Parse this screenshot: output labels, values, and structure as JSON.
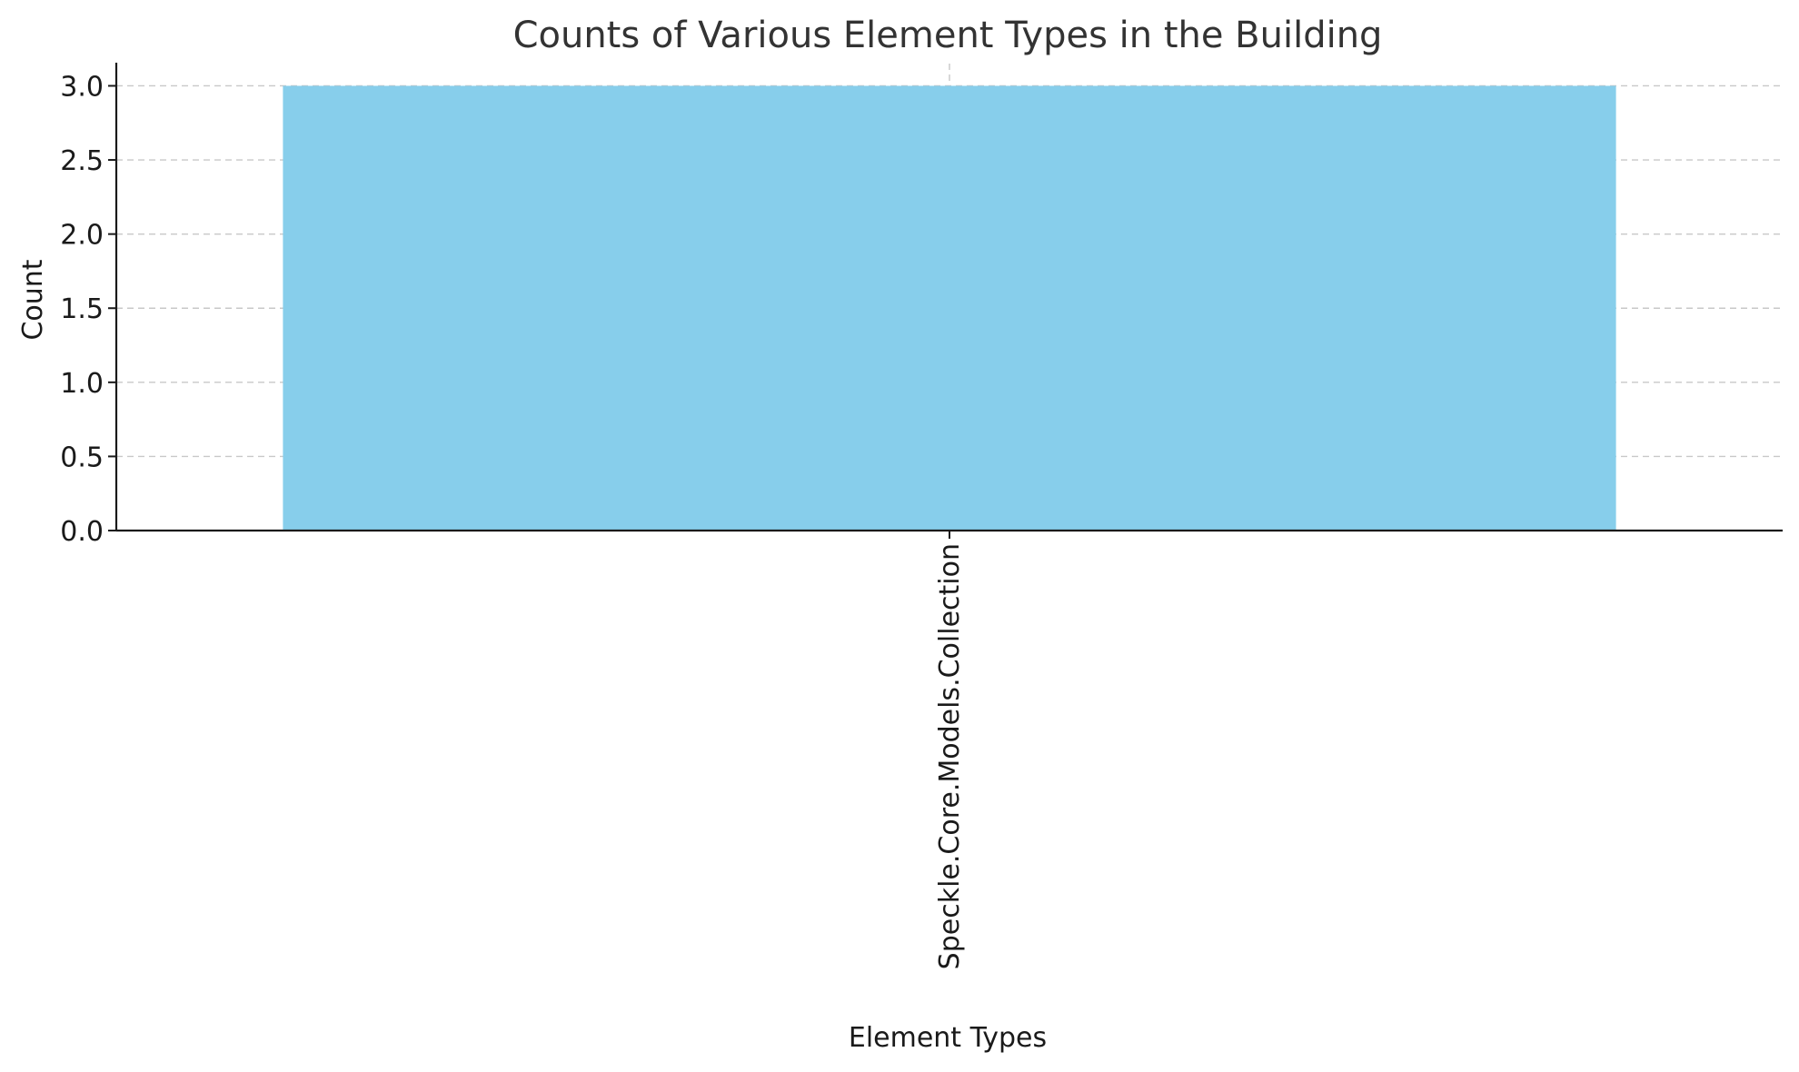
{
  "chart_data": {
    "type": "bar",
    "title": "Counts of Various Element Types in the Building",
    "xlabel": "Element Types",
    "ylabel": "Count",
    "categories": [
      "Speckle.Core.Models.Collection"
    ],
    "values": [
      3
    ],
    "ylim": [
      0,
      3.15
    ],
    "yticks": [
      "0.0",
      "0.5",
      "1.0",
      "1.5",
      "2.0",
      "2.5",
      "3.0"
    ],
    "grid": true,
    "bar_color": "#87ceeb"
  }
}
